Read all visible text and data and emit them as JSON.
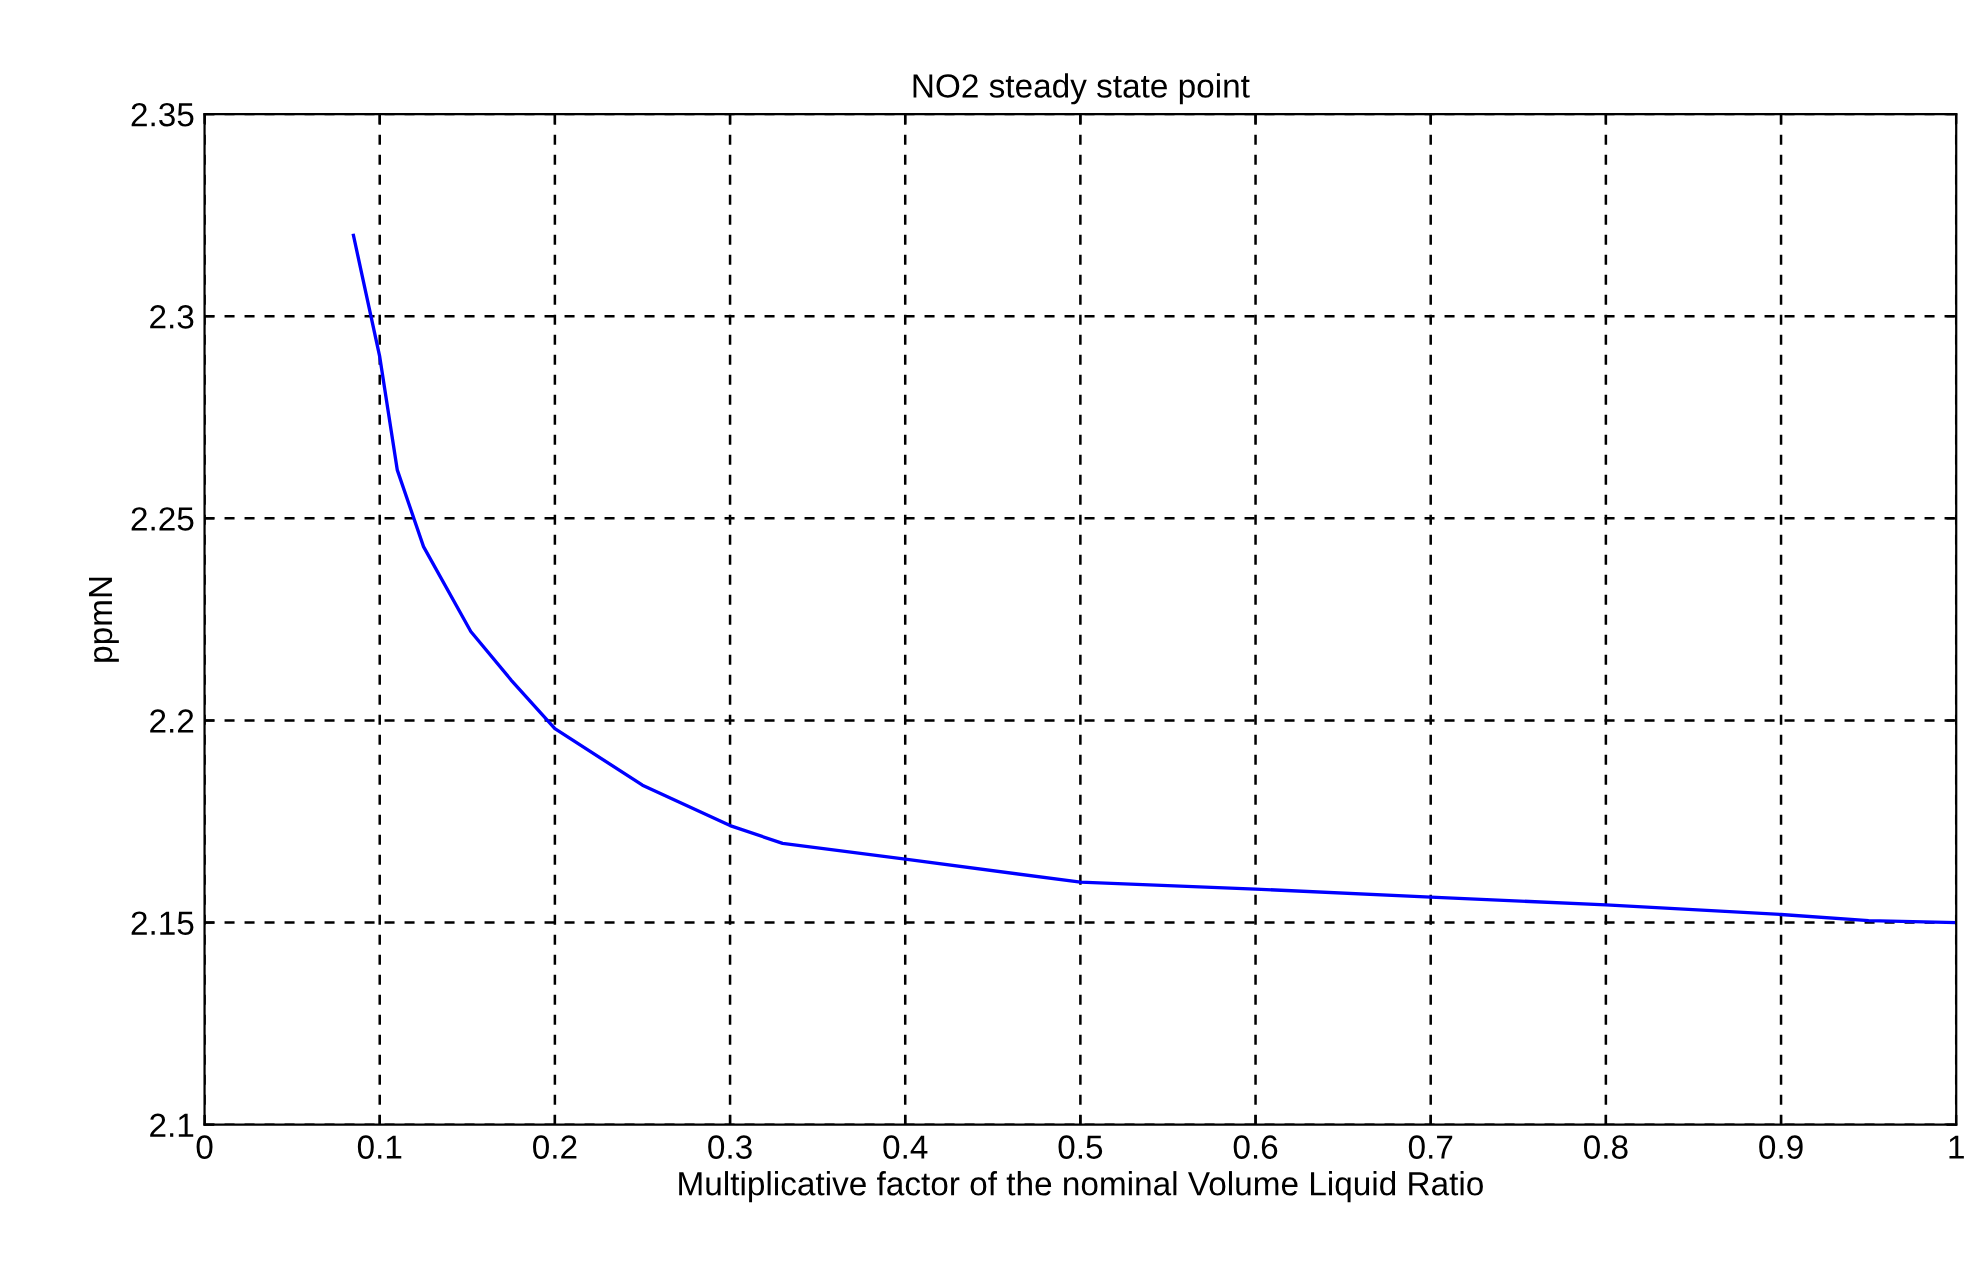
{
  "chart_data": {
    "type": "line",
    "title": "NO2 steady state point",
    "xlabel": "Multiplicative factor of the nominal Volume Liquid Ratio",
    "ylabel": "ppmN",
    "x": [
      0.085,
      0.09,
      0.1,
      0.11,
      0.125,
      0.152,
      0.175,
      0.2,
      0.25,
      0.3,
      0.33,
      0.4,
      0.5,
      0.6,
      0.7,
      0.8,
      0.9,
      0.95,
      1.0
    ],
    "series": [
      {
        "color": "#0000ff",
        "values": [
          2.32,
          2.31,
          2.29,
          2.262,
          2.243,
          2.222,
          2.21,
          2.198,
          2.184,
          2.174,
          2.1696,
          2.1657,
          2.16,
          2.1583,
          2.1563,
          2.1544,
          2.152,
          2.1505,
          2.15
        ]
      }
    ],
    "xlim": [
      0,
      1
    ],
    "ylim": [
      2.1,
      2.35
    ],
    "xticks": [
      0,
      0.1,
      0.2,
      0.3,
      0.4,
      0.5,
      0.6,
      0.7,
      0.8,
      0.9,
      1
    ],
    "yticks": [
      2.1,
      2.15,
      2.2,
      2.25,
      2.3,
      2.35
    ],
    "grid": true,
    "line_style": "solid",
    "marker": "none"
  }
}
